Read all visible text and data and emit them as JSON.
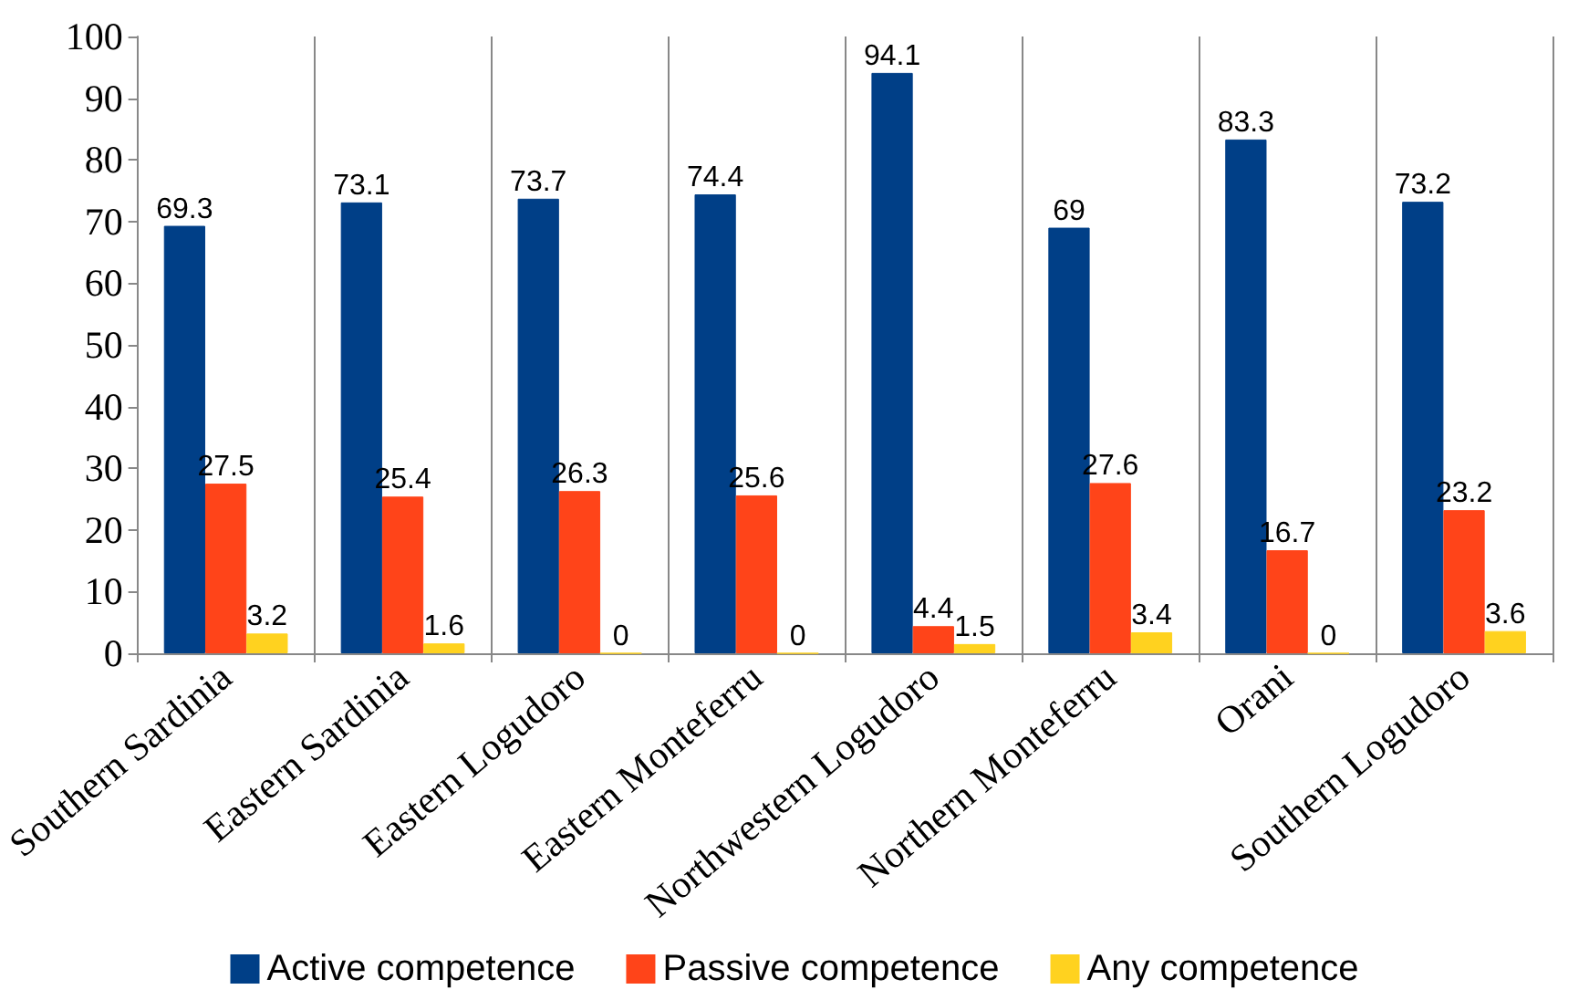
{
  "chart_data": {
    "type": "bar",
    "categories": [
      "Southern Sardinia",
      "Eastern Sardinia",
      "Eastern Logudoro",
      "Eastern Monteferru",
      "Northwestern Logudoro",
      "Northern Monteferru",
      "Orani",
      "Southern Logudoro"
    ],
    "series": [
      {
        "name": "Active competence",
        "color": "#003f87",
        "values": [
          69.3,
          73.1,
          73.7,
          74.4,
          94.1,
          69,
          83.3,
          73.2
        ]
      },
      {
        "name": "Passive competence",
        "color": "#ff4419",
        "values": [
          27.5,
          25.4,
          26.3,
          25.6,
          4.4,
          27.6,
          16.7,
          23.2
        ]
      },
      {
        "name": "Any competence",
        "color": "#ffd21f",
        "values": [
          3.2,
          1.6,
          0,
          0,
          1.5,
          3.4,
          0,
          3.6
        ]
      }
    ],
    "ylim": [
      0,
      100
    ],
    "yticks": [
      0,
      10,
      20,
      30,
      40,
      50,
      60,
      70,
      80,
      90,
      100
    ],
    "grid": "x",
    "legend": "bottom",
    "data_labels": true
  }
}
